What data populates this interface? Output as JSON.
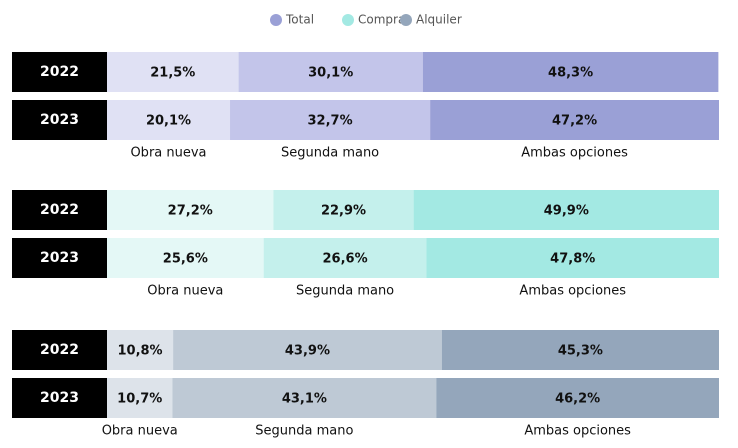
{
  "chart_data": [
    {
      "type": "stacked-bar",
      "name": "Total",
      "color": "#9aa0d6",
      "categories": [
        "2022",
        "2023"
      ],
      "xlim": [
        0,
        100
      ],
      "series": [
        {
          "name": "Obra nueva",
          "color": "#e0e1f4",
          "values": [
            21.5,
            20.1
          ],
          "value_labels": [
            "21,5%",
            "20,1%"
          ]
        },
        {
          "name": "Segunda mano",
          "color": "#c3c5ea",
          "values": [
            30.1,
            32.7
          ],
          "value_labels": [
            "30,1%",
            "32,7%"
          ]
        },
        {
          "name": "Ambas opciones",
          "color": "#9aa0d6",
          "values": [
            48.3,
            47.2
          ],
          "value_labels": [
            "48,3%",
            "47,2%"
          ]
        }
      ]
    },
    {
      "type": "stacked-bar",
      "name": "Compra",
      "color": "#a3e9e3",
      "categories": [
        "2022",
        "2023"
      ],
      "xlim": [
        0,
        100
      ],
      "series": [
        {
          "name": "Obra nueva",
          "color": "#e4f8f6",
          "values": [
            27.2,
            25.6
          ],
          "value_labels": [
            "27,2%",
            "25,6%"
          ]
        },
        {
          "name": "Segunda mano",
          "color": "#c4f0ec",
          "values": [
            22.9,
            26.6
          ],
          "value_labels": [
            "22,9%",
            "26,6%"
          ]
        },
        {
          "name": "Ambas opciones",
          "color": "#a3e9e3",
          "values": [
            49.9,
            47.8
          ],
          "value_labels": [
            "49,9%",
            "47,8%"
          ]
        }
      ]
    },
    {
      "type": "stacked-bar",
      "name": "Alquiler",
      "color": "#94a6bb",
      "categories": [
        "2022",
        "2023"
      ],
      "xlim": [
        0,
        100
      ],
      "series": [
        {
          "name": "Obra nueva",
          "color": "#dde3ea",
          "values": [
            10.8,
            10.7
          ],
          "value_labels": [
            "10,8%",
            "10,7%"
          ]
        },
        {
          "name": "Segunda mano",
          "color": "#bec9d5",
          "values": [
            43.9,
            43.1
          ],
          "value_labels": [
            "43,9%",
            "43,1%"
          ]
        },
        {
          "name": "Ambas opciones",
          "color": "#94a6bb",
          "values": [
            45.3,
            46.2
          ],
          "value_labels": [
            "45,3%",
            "46,2%"
          ]
        }
      ]
    }
  ]
}
